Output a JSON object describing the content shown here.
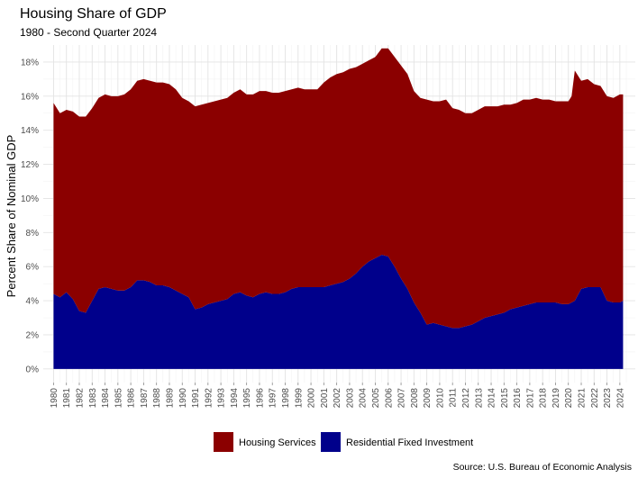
{
  "chart_data": {
    "type": "area",
    "stacked": true,
    "title": "Housing Share of GDP",
    "subtitle": "1980 - Second Quarter 2024",
    "ylabel": "Percent Share of Nominal GDP",
    "xlabel": "",
    "caption": "Source: U.S. Bureau of Economic Analysis",
    "ylim": [
      0,
      19
    ],
    "y_ticks": [
      0,
      2,
      4,
      6,
      8,
      10,
      12,
      14,
      16,
      18
    ],
    "y_tick_labels": [
      "0%",
      "2%",
      "4%",
      "6%",
      "8%",
      "10%",
      "12%",
      "14%",
      "16%",
      "18%"
    ],
    "x_ticks": [
      "1980",
      "1981",
      "1982",
      "1983",
      "1984",
      "1985",
      "1986",
      "1987",
      "1988",
      "1989",
      "1990",
      "1991",
      "1992",
      "1993",
      "1994",
      "1995",
      "1996",
      "1997",
      "1998",
      "1999",
      "2000",
      "2001",
      "2002",
      "2003",
      "2004",
      "2005",
      "2006",
      "2007",
      "2008",
      "2009",
      "2010",
      "2011",
      "2012",
      "2013",
      "2014",
      "2015",
      "2016",
      "2017",
      "2018",
      "2019",
      "2020",
      "2021",
      "2022",
      "2023",
      "2024"
    ],
    "grid": true,
    "legend_position": "bottom",
    "x": [
      1980.0,
      1980.5,
      1981.0,
      1981.5,
      1982.0,
      1982.5,
      1983.0,
      1983.5,
      1984.0,
      1984.5,
      1985.0,
      1985.5,
      1986.0,
      1986.5,
      1987.0,
      1987.5,
      1988.0,
      1988.5,
      1989.0,
      1989.5,
      1990.0,
      1990.5,
      1991.0,
      1991.5,
      1992.0,
      1992.5,
      1993.0,
      1993.5,
      1994.0,
      1994.5,
      1995.0,
      1995.5,
      1996.0,
      1996.5,
      1997.0,
      1997.5,
      1998.0,
      1998.5,
      1999.0,
      1999.5,
      2000.0,
      2000.5,
      2001.0,
      2001.5,
      2002.0,
      2002.5,
      2003.0,
      2003.5,
      2004.0,
      2004.5,
      2005.0,
      2005.5,
      2006.0,
      2006.5,
      2007.0,
      2007.5,
      2008.0,
      2008.5,
      2009.0,
      2009.5,
      2010.0,
      2010.5,
      2011.0,
      2011.5,
      2012.0,
      2012.5,
      2013.0,
      2013.5,
      2014.0,
      2014.5,
      2015.0,
      2015.5,
      2016.0,
      2016.5,
      2017.0,
      2017.5,
      2018.0,
      2018.5,
      2019.0,
      2019.5,
      2020.0,
      2020.25,
      2020.5,
      2021.0,
      2021.5,
      2022.0,
      2022.5,
      2023.0,
      2023.5,
      2024.0,
      2024.25
    ],
    "series": [
      {
        "name": "Residential Fixed Investment",
        "color": "#00008b",
        "values": [
          4.4,
          4.2,
          4.5,
          4.1,
          3.4,
          3.3,
          4.0,
          4.7,
          4.8,
          4.7,
          4.6,
          4.6,
          4.8,
          5.2,
          5.2,
          5.1,
          4.9,
          4.9,
          4.8,
          4.6,
          4.4,
          4.2,
          3.5,
          3.6,
          3.8,
          3.9,
          4.0,
          4.1,
          4.4,
          4.5,
          4.3,
          4.2,
          4.4,
          4.5,
          4.4,
          4.4,
          4.5,
          4.7,
          4.8,
          4.8,
          4.8,
          4.8,
          4.8,
          4.9,
          5.0,
          5.1,
          5.3,
          5.6,
          6.0,
          6.3,
          6.5,
          6.7,
          6.6,
          6.0,
          5.3,
          4.7,
          3.9,
          3.3,
          2.6,
          2.7,
          2.6,
          2.5,
          2.4,
          2.4,
          2.5,
          2.6,
          2.8,
          3.0,
          3.1,
          3.2,
          3.3,
          3.5,
          3.6,
          3.7,
          3.8,
          3.9,
          3.9,
          3.9,
          3.9,
          3.8,
          3.8,
          3.9,
          4.0,
          4.7,
          4.8,
          4.8,
          4.8,
          4.0,
          3.9,
          3.9,
          4.0
        ]
      },
      {
        "name": "Housing Services",
        "color": "#8b0000",
        "values": [
          11.2,
          10.8,
          10.7,
          11.0,
          11.4,
          11.5,
          11.3,
          11.2,
          11.3,
          11.3,
          11.4,
          11.5,
          11.6,
          11.7,
          11.8,
          11.8,
          11.9,
          11.9,
          11.9,
          11.8,
          11.5,
          11.5,
          11.9,
          11.9,
          11.8,
          11.8,
          11.8,
          11.8,
          11.8,
          11.9,
          11.8,
          11.9,
          11.9,
          11.8,
          11.8,
          11.8,
          11.8,
          11.7,
          11.7,
          11.6,
          11.6,
          11.6,
          12.0,
          12.2,
          12.3,
          12.3,
          12.3,
          12.1,
          11.9,
          11.8,
          11.8,
          12.1,
          12.2,
          12.3,
          12.5,
          12.6,
          12.4,
          12.6,
          13.2,
          13.0,
          13.1,
          13.3,
          12.9,
          12.8,
          12.5,
          12.4,
          12.4,
          12.4,
          12.3,
          12.2,
          12.2,
          12.0,
          12.0,
          12.1,
          12.0,
          12.0,
          11.9,
          11.9,
          11.8,
          11.9,
          11.9,
          12.1,
          13.5,
          12.2,
          12.2,
          11.9,
          11.8,
          12.0,
          12.0,
          12.2,
          12.1
        ]
      }
    ]
  }
}
